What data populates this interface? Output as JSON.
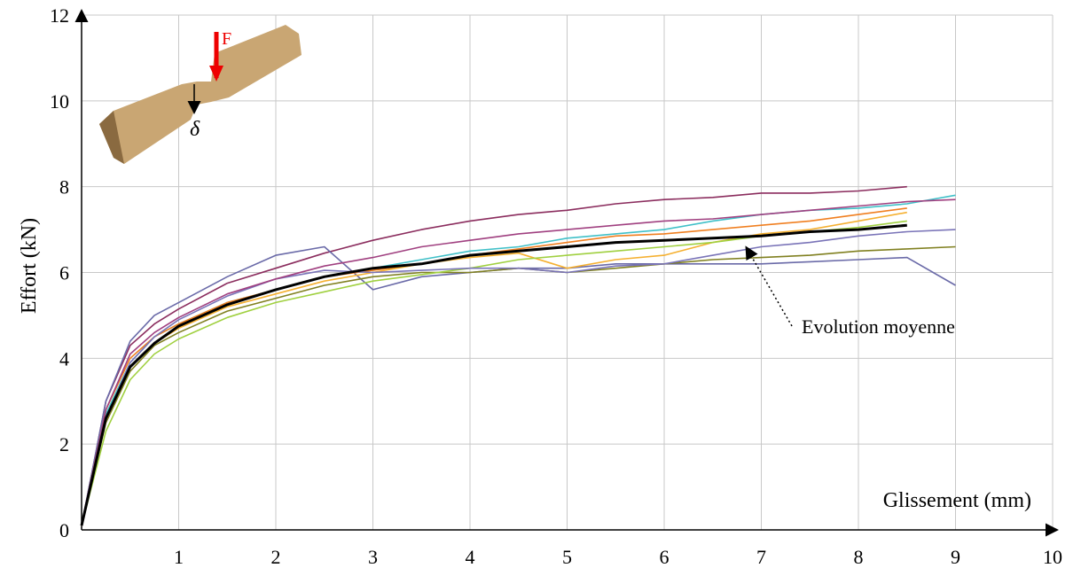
{
  "chart_data": {
    "type": "line",
    "y_label": "Effort (kN)",
    "x_label": "Glissement (mm)",
    "annotation": "Evolution moyenne",
    "inset_labels": {
      "force": "F",
      "slip": "δ"
    },
    "xlim": [
      0,
      10
    ],
    "ylim": [
      0,
      12
    ],
    "xticks": [
      1,
      2,
      3,
      4,
      5,
      6,
      7,
      8,
      9,
      10
    ],
    "yticks": [
      0,
      2,
      4,
      6,
      8,
      10,
      12
    ],
    "grid": true,
    "x": [
      0,
      0.25,
      0.5,
      0.75,
      1,
      1.5,
      2,
      2.5,
      3,
      3.5,
      4,
      4.5,
      5,
      5.5,
      6,
      6.5,
      7,
      7.5,
      8,
      8.5,
      9
    ],
    "series": [
      {
        "color": "#8b2d5e",
        "values": [
          0.1,
          3.0,
          4.3,
          4.8,
          5.15,
          5.75,
          6.1,
          6.45,
          6.75,
          7.0,
          7.2,
          7.35,
          7.45,
          7.6,
          7.7,
          7.75,
          7.85,
          7.85,
          7.9,
          8.0,
          null
        ]
      },
      {
        "color": "#6a6aa8",
        "values": [
          0.1,
          3.0,
          4.4,
          5.0,
          5.3,
          5.9,
          6.4,
          6.6,
          5.6,
          5.9,
          6.0,
          6.1,
          6.1,
          6.2,
          6.2,
          6.2,
          6.2,
          6.25,
          6.3,
          6.35,
          5.7
        ]
      },
      {
        "color": "#40c0c8",
        "values": [
          0.1,
          2.7,
          3.9,
          4.5,
          4.8,
          5.3,
          5.6,
          5.9,
          6.1,
          6.3,
          6.5,
          6.6,
          6.8,
          6.9,
          7.0,
          7.2,
          7.35,
          7.45,
          7.5,
          7.6,
          7.8
        ]
      },
      {
        "color": "#f07f20",
        "values": [
          0.1,
          2.8,
          4.0,
          4.5,
          4.8,
          5.3,
          5.6,
          5.9,
          6.05,
          6.2,
          6.4,
          6.55,
          6.7,
          6.85,
          6.9,
          7.0,
          7.1,
          7.2,
          7.35,
          7.5,
          null
        ]
      },
      {
        "color": "#f5b030",
        "values": [
          0.1,
          2.6,
          3.8,
          4.35,
          4.7,
          5.2,
          5.5,
          5.8,
          6.0,
          6.2,
          6.35,
          6.45,
          6.1,
          6.3,
          6.4,
          6.7,
          6.9,
          7.0,
          7.2,
          7.4,
          null
        ]
      },
      {
        "color": "#808020",
        "values": [
          0.1,
          2.5,
          3.7,
          4.3,
          4.6,
          5.1,
          5.4,
          5.7,
          5.9,
          6.0,
          6.0,
          6.1,
          6.0,
          6.1,
          6.2,
          6.3,
          6.35,
          6.4,
          6.5,
          6.55,
          6.6
        ]
      },
      {
        "color": "#a0d040",
        "values": [
          0.1,
          2.3,
          3.5,
          4.1,
          4.45,
          4.95,
          5.3,
          5.55,
          5.8,
          5.95,
          6.1,
          6.3,
          6.4,
          6.5,
          6.6,
          6.7,
          6.85,
          6.95,
          7.05,
          7.2,
          null
        ]
      },
      {
        "color": "#7a74b8",
        "values": [
          0.1,
          2.6,
          3.9,
          4.5,
          4.9,
          5.45,
          5.85,
          6.05,
          6.0,
          6.05,
          6.1,
          6.1,
          6.0,
          6.15,
          6.2,
          6.4,
          6.6,
          6.7,
          6.85,
          6.95,
          7.0
        ]
      },
      {
        "color": "#a04080",
        "values": [
          0.1,
          2.8,
          4.1,
          4.6,
          4.95,
          5.5,
          5.85,
          6.15,
          6.35,
          6.6,
          6.75,
          6.9,
          7.0,
          7.1,
          7.2,
          7.25,
          7.35,
          7.45,
          7.55,
          7.65,
          7.7
        ]
      },
      {
        "color": "#000000",
        "values": [
          0.1,
          2.6,
          3.8,
          4.35,
          4.75,
          5.25,
          5.6,
          5.9,
          6.1,
          6.2,
          6.4,
          6.5,
          6.6,
          6.7,
          6.75,
          6.8,
          6.85,
          6.95,
          7.0,
          7.1,
          null
        ]
      }
    ]
  }
}
